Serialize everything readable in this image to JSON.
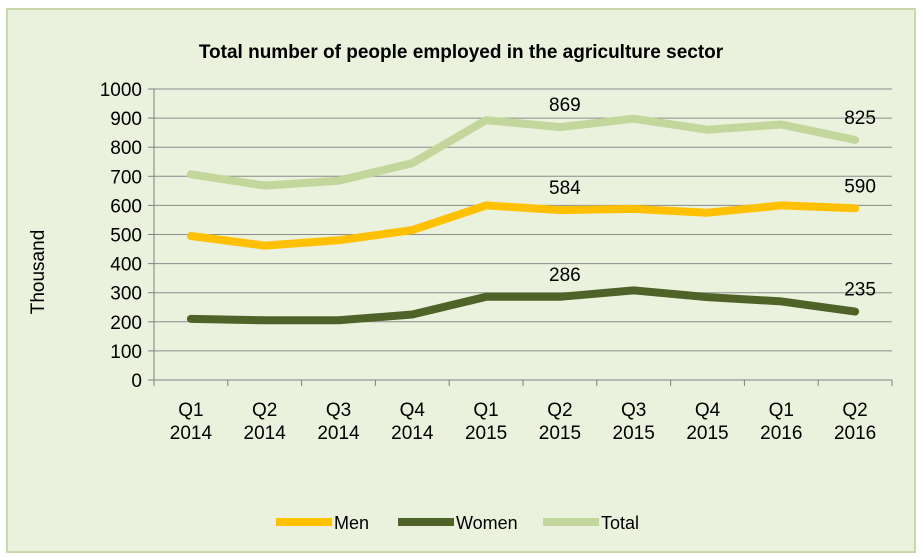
{
  "chart_data": {
    "type": "line",
    "title": "Total number of people employed in the agriculture sector",
    "xlabel": "",
    "ylabel": "Thousand",
    "ylim": [
      0,
      1000
    ],
    "yticks": [
      "0",
      "100",
      "200",
      "300",
      "400",
      "500",
      "600",
      "700",
      "800",
      "900",
      "1000"
    ],
    "categories": [
      [
        "Q1",
        "2014"
      ],
      [
        "Q2",
        "2014"
      ],
      [
        "Q3",
        "2014"
      ],
      [
        "Q4",
        "2014"
      ],
      [
        "Q1",
        "2015"
      ],
      [
        "Q2",
        "2015"
      ],
      [
        "Q3",
        "2015"
      ],
      [
        "Q4",
        "2015"
      ],
      [
        "Q1",
        "2016"
      ],
      [
        "Q2",
        "2016"
      ]
    ],
    "grid": true,
    "legend_position": "bottom",
    "series": [
      {
        "name": "Men",
        "color": "#ffc000",
        "values": [
          495,
          462,
          480,
          515,
          600,
          584,
          588,
          575,
          600,
          590
        ]
      },
      {
        "name": "Women",
        "color": "#4f6228",
        "values": [
          210,
          205,
          205,
          225,
          286,
          286,
          308,
          285,
          270,
          235
        ]
      },
      {
        "name": "Total",
        "color": "#c3d69b",
        "values": [
          707,
          668,
          685,
          745,
          893,
          869,
          898,
          860,
          878,
          825
        ]
      }
    ],
    "data_labels": [
      {
        "series": 2,
        "index": 5,
        "text": "869"
      },
      {
        "series": 2,
        "index": 9,
        "text": "825"
      },
      {
        "series": 0,
        "index": 5,
        "text": "584"
      },
      {
        "series": 0,
        "index": 9,
        "text": "590"
      },
      {
        "series": 1,
        "index": 5,
        "text": "286"
      },
      {
        "series": 1,
        "index": 9,
        "text": "235"
      }
    ]
  }
}
